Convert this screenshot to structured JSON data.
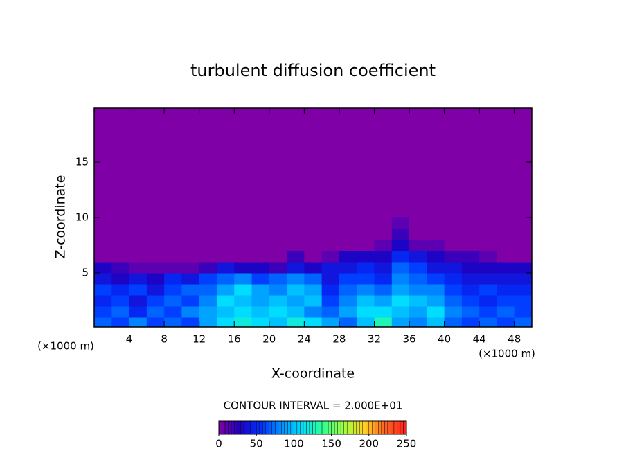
{
  "chart_data": {
    "type": "heatmap",
    "title": "turbulent diffusion coefficient",
    "xlabel": "X-coordinate",
    "ylabel": "Z-coordinate",
    "xunit": "(×1000 m)",
    "yunit": "(×1000 m)",
    "annotation": "CONTOUR INTERVAL = 2.000E+01",
    "xlim": [
      0,
      50
    ],
    "ylim": [
      0.125,
      19.875
    ],
    "xticks": [
      4,
      8,
      12,
      16,
      20,
      24,
      28,
      32,
      36,
      40,
      44,
      48
    ],
    "yticks": [
      5,
      10,
      15
    ],
    "x": [
      1,
      3,
      5,
      7,
      9,
      11,
      13,
      15,
      17,
      19,
      21,
      23,
      25,
      27,
      29,
      31,
      33,
      35,
      37,
      39,
      41,
      43,
      45,
      47,
      49
    ],
    "y": [
      0.5,
      1.5,
      2.5,
      3.5,
      4.5,
      5.5,
      6.5,
      7.5,
      8.5,
      9.5
    ],
    "z": [
      [
        70,
        60,
        80,
        60,
        70,
        60,
        90,
        110,
        120,
        110,
        100,
        120,
        110,
        90,
        70,
        100,
        130,
        90,
        80,
        100,
        70,
        60,
        70,
        60,
        70
      ],
      [
        60,
        70,
        50,
        70,
        60,
        80,
        90,
        100,
        110,
        100,
        110,
        100,
        80,
        70,
        90,
        110,
        110,
        100,
        90,
        110,
        80,
        70,
        60,
        70,
        60
      ],
      [
        50,
        60,
        40,
        60,
        70,
        60,
        80,
        110,
        100,
        90,
        100,
        90,
        100,
        60,
        80,
        100,
        90,
        110,
        100,
        90,
        70,
        60,
        50,
        60,
        60
      ],
      [
        60,
        50,
        60,
        40,
        60,
        70,
        70,
        90,
        110,
        90,
        80,
        100,
        90,
        50,
        70,
        80,
        70,
        90,
        80,
        80,
        60,
        50,
        60,
        50,
        50
      ],
      [
        40,
        30,
        40,
        30,
        50,
        40,
        60,
        70,
        80,
        60,
        70,
        80,
        70,
        40,
        60,
        60,
        50,
        80,
        70,
        60,
        50,
        40,
        40,
        40,
        40
      ],
      [
        30,
        20,
        10,
        10,
        10,
        10,
        20,
        40,
        30,
        30,
        20,
        40,
        30,
        40,
        40,
        50,
        40,
        70,
        60,
        40,
        40,
        30,
        30,
        30,
        30
      ],
      [
        0,
        0,
        0,
        0,
        0,
        0,
        0,
        0,
        0,
        0,
        0,
        20,
        0,
        10,
        30,
        30,
        30,
        50,
        40,
        30,
        20,
        20,
        10,
        0,
        0
      ],
      [
        0,
        0,
        0,
        0,
        0,
        0,
        0,
        0,
        0,
        0,
        0,
        0,
        0,
        0,
        0,
        0,
        10,
        30,
        10,
        10,
        0,
        0,
        0,
        0,
        0
      ],
      [
        0,
        0,
        0,
        0,
        0,
        0,
        0,
        0,
        0,
        0,
        0,
        0,
        0,
        0,
        0,
        0,
        0,
        20,
        0,
        0,
        0,
        0,
        0,
        0,
        0
      ],
      [
        0,
        0,
        0,
        0,
        0,
        0,
        0,
        0,
        0,
        0,
        0,
        0,
        0,
        0,
        0,
        0,
        0,
        10,
        0,
        0,
        0,
        0,
        0,
        0,
        0
      ]
    ],
    "clim": [
      0,
      250
    ],
    "colorscale": [
      "#8000a8",
      "#2000c0",
      "#0030ff",
      "#0090ff",
      "#00e0ff",
      "#30ff90",
      "#a0ff40",
      "#ffd020",
      "#ff6020",
      "#ff2020"
    ],
    "colorbar_ticks": [
      0,
      50,
      100,
      150,
      200,
      250
    ]
  }
}
